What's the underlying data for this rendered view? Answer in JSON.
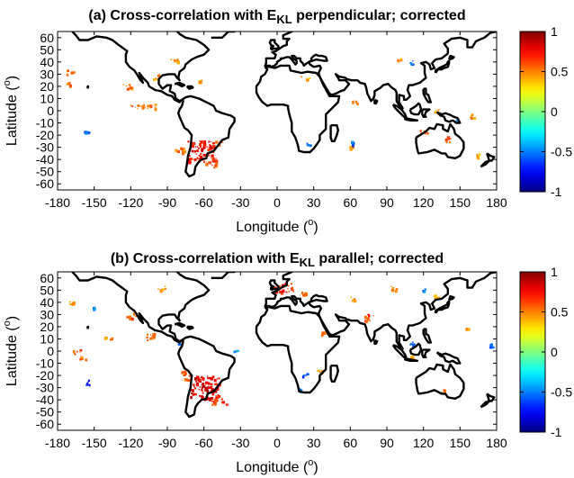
{
  "chart_data": [
    {
      "type": "heatmap",
      "title_parts": [
        "(a) Cross-correlation with E",
        "KL",
        " perpendicular; corrected"
      ],
      "xlabel_parts": [
        "Longitude (",
        "o",
        ")"
      ],
      "ylabel_parts": [
        "Latitude (",
        "o",
        ")"
      ],
      "xlim": [
        -180,
        180
      ],
      "ylim": [
        -65,
        65
      ],
      "xticks": [
        -180,
        -150,
        -120,
        -90,
        -60,
        -30,
        0,
        30,
        60,
        90,
        120,
        150,
        180
      ],
      "yticks": [
        -60,
        -50,
        -40,
        -30,
        -20,
        -10,
        0,
        10,
        20,
        30,
        40,
        50,
        60
      ],
      "colorbar": {
        "min": -1,
        "max": 1,
        "ticks": [
          1,
          0.5,
          0,
          -0.5,
          -1
        ]
      },
      "positive_regions": [
        {
          "lon": -63,
          "lat": -33,
          "w": 22,
          "h": 18,
          "value": 0.75
        },
        {
          "lon": -55,
          "lat": -42,
          "w": 10,
          "h": 8,
          "value": 0.6
        },
        {
          "lon": -48,
          "lat": -25,
          "w": 6,
          "h": 5,
          "value": 0.55
        },
        {
          "lon": -80,
          "lat": -32,
          "w": 8,
          "h": 6,
          "value": 0.5
        },
        {
          "lon": -110,
          "lat": 4,
          "w": 22,
          "h": 4,
          "value": 0.55
        },
        {
          "lon": -125,
          "lat": 20,
          "w": 10,
          "h": 4,
          "value": 0.5
        },
        {
          "lon": -100,
          "lat": 28,
          "w": 6,
          "h": 4,
          "value": 0.5
        },
        {
          "lon": -170,
          "lat": 32,
          "w": 6,
          "h": 5,
          "value": 0.5
        },
        {
          "lon": -172,
          "lat": 22,
          "w": 4,
          "h": 4,
          "value": 0.5
        },
        {
          "lon": -85,
          "lat": 42,
          "w": 6,
          "h": 3,
          "value": 0.45
        },
        {
          "lon": -65,
          "lat": 24,
          "w": 4,
          "h": 3,
          "value": 0.45
        },
        {
          "lon": 120,
          "lat": -17,
          "w": 6,
          "h": 3,
          "value": 0.55
        },
        {
          "lon": 140,
          "lat": -23,
          "w": 5,
          "h": 5,
          "value": 0.6
        },
        {
          "lon": 160,
          "lat": -4,
          "w": 4,
          "h": 3,
          "value": 0.45
        },
        {
          "lon": 165,
          "lat": -36,
          "w": 4,
          "h": 3,
          "value": 0.45
        },
        {
          "lon": 63,
          "lat": 7,
          "w": 5,
          "h": 3,
          "value": 0.45
        },
        {
          "lon": 22,
          "lat": 27,
          "w": 8,
          "h": 4,
          "value": 0.45
        },
        {
          "lon": 100,
          "lat": 42,
          "w": 6,
          "h": 4,
          "value": 0.45
        },
        {
          "lon": 130,
          "lat": 0,
          "w": 5,
          "h": 3,
          "value": 0.5
        },
        {
          "lon": 60,
          "lat": -30,
          "w": 4,
          "h": 3,
          "value": 0.45
        }
      ],
      "negative_regions": [
        {
          "lon": -157,
          "lat": -18,
          "w": 4,
          "h": 5,
          "value": -0.6
        },
        {
          "lon": 25,
          "lat": -27,
          "w": 3,
          "h": 3,
          "value": -0.55
        },
        {
          "lon": 62,
          "lat": -26,
          "w": 3,
          "h": 3,
          "value": -0.55
        },
        {
          "lon": 110,
          "lat": 40,
          "w": 3,
          "h": 3,
          "value": -0.5
        },
        {
          "lon": 147,
          "lat": -8,
          "w": 2,
          "h": 2,
          "value": -0.5
        }
      ]
    },
    {
      "type": "heatmap",
      "title_parts": [
        "(b) Cross-correlation with E",
        "KL",
        " parallel; corrected"
      ],
      "xlabel_parts": [
        "Longitude (",
        "o",
        ")"
      ],
      "ylabel_parts": [
        "Latitude (",
        "o",
        ")"
      ],
      "xlim": [
        -180,
        180
      ],
      "ylim": [
        -65,
        65
      ],
      "xticks": [
        -180,
        -150,
        -120,
        -90,
        -60,
        -30,
        0,
        30,
        60,
        90,
        120,
        150,
        180
      ],
      "yticks": [
        -60,
        -50,
        -40,
        -30,
        -20,
        -10,
        0,
        10,
        20,
        30,
        40,
        50,
        60
      ],
      "colorbar": {
        "min": -1,
        "max": 1,
        "ticks": [
          1,
          0.5,
          0,
          -0.5,
          -1
        ]
      },
      "positive_regions": [
        {
          "lon": -60,
          "lat": -30,
          "w": 24,
          "h": 20,
          "value": 0.8
        },
        {
          "lon": -48,
          "lat": -40,
          "w": 12,
          "h": 8,
          "value": 0.65
        },
        {
          "lon": -75,
          "lat": -20,
          "w": 8,
          "h": 8,
          "value": 0.55
        },
        {
          "lon": -120,
          "lat": 30,
          "w": 8,
          "h": 6,
          "value": 0.6
        },
        {
          "lon": -105,
          "lat": 12,
          "w": 10,
          "h": 6,
          "value": 0.6
        },
        {
          "lon": -140,
          "lat": 10,
          "w": 8,
          "h": 4,
          "value": 0.5
        },
        {
          "lon": -165,
          "lat": 0,
          "w": 8,
          "h": 5,
          "value": 0.6
        },
        {
          "lon": -160,
          "lat": -5,
          "w": 6,
          "h": 3,
          "value": 0.5
        },
        {
          "lon": -95,
          "lat": 52,
          "w": 6,
          "h": 4,
          "value": 0.5
        },
        {
          "lon": -170,
          "lat": 40,
          "w": 5,
          "h": 3,
          "value": 0.45
        },
        {
          "lon": 5,
          "lat": 53,
          "w": 16,
          "h": 8,
          "value": 0.7
        },
        {
          "lon": 22,
          "lat": 47,
          "w": 8,
          "h": 4,
          "value": 0.55
        },
        {
          "lon": 75,
          "lat": 28,
          "w": 8,
          "h": 6,
          "value": 0.65
        },
        {
          "lon": 62,
          "lat": 43,
          "w": 5,
          "h": 4,
          "value": 0.5
        },
        {
          "lon": 38,
          "lat": 15,
          "w": 5,
          "h": 4,
          "value": 0.5
        },
        {
          "lon": 35,
          "lat": -15,
          "w": 5,
          "h": 5,
          "value": 0.5
        },
        {
          "lon": 95,
          "lat": 52,
          "w": 6,
          "h": 4,
          "value": 0.5
        },
        {
          "lon": 135,
          "lat": -32,
          "w": 6,
          "h": 4,
          "value": 0.55
        },
        {
          "lon": 110,
          "lat": -5,
          "w": 4,
          "h": 3,
          "value": 0.45
        },
        {
          "lon": 155,
          "lat": 18,
          "w": 4,
          "h": 3,
          "value": 0.45
        },
        {
          "lon": 130,
          "lat": 45,
          "w": 5,
          "h": 3,
          "value": 0.45
        }
      ],
      "negative_regions": [
        {
          "lon": -155,
          "lat": -25,
          "w": 5,
          "h": 5,
          "value": -0.7
        },
        {
          "lon": -150,
          "lat": 35,
          "w": 3,
          "h": 3,
          "value": -0.5
        },
        {
          "lon": -80,
          "lat": 5,
          "w": 4,
          "h": 3,
          "value": -0.5
        },
        {
          "lon": 22,
          "lat": -20,
          "w": 4,
          "h": 4,
          "value": -0.6
        },
        {
          "lon": 18,
          "lat": -31,
          "w": 3,
          "h": 3,
          "value": -0.55
        },
        {
          "lon": 110,
          "lat": 7,
          "w": 4,
          "h": 3,
          "value": -0.55
        },
        {
          "lon": 120,
          "lat": 50,
          "w": 3,
          "h": 3,
          "value": -0.5
        },
        {
          "lon": 175,
          "lat": 5,
          "w": 3,
          "h": 3,
          "value": -0.5
        },
        {
          "lon": -35,
          "lat": 0,
          "w": 3,
          "h": 2,
          "value": -0.5
        }
      ]
    }
  ]
}
